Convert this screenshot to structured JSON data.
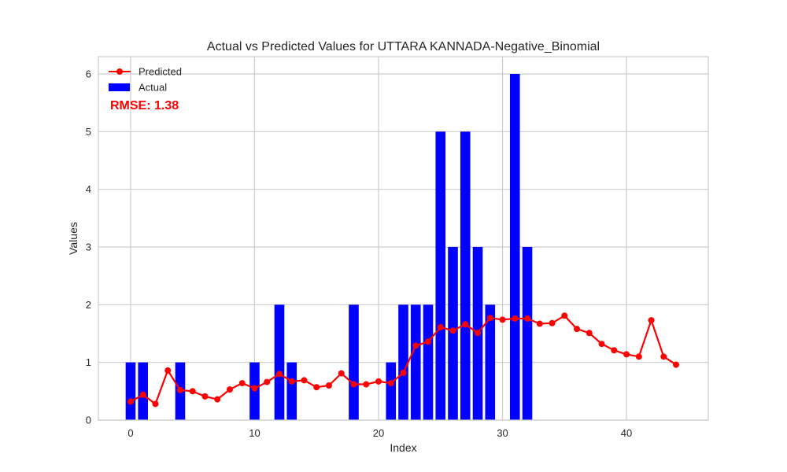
{
  "chart_data": {
    "type": "bar",
    "title": "Actual vs Predicted Values for UTTARA KANNADA-Negative_Binomial",
    "xlabel": "Index",
    "ylabel": "Values",
    "xlim": [
      -2.6,
      46.6
    ],
    "ylim": [
      0,
      6.3
    ],
    "xticks": [
      0,
      10,
      20,
      30,
      40
    ],
    "yticks": [
      0,
      1,
      2,
      3,
      4,
      5,
      6
    ],
    "grid": true,
    "legend_position": "top-left",
    "annotation": "RMSE: 1.38",
    "series": [
      {
        "name": "Actual",
        "type": "bar",
        "color": "#0000ff",
        "x": [
          0,
          1,
          2,
          3,
          4,
          5,
          6,
          7,
          8,
          9,
          10,
          11,
          12,
          13,
          14,
          15,
          16,
          17,
          18,
          19,
          20,
          21,
          22,
          23,
          24,
          25,
          26,
          27,
          28,
          29,
          30,
          31,
          32
        ],
        "values": [
          1,
          1,
          0,
          0,
          1,
          0,
          0,
          0,
          0,
          0,
          1,
          0,
          2,
          1,
          0,
          0,
          0,
          0,
          2,
          0,
          0,
          1,
          2,
          2,
          2,
          5,
          3,
          5,
          3,
          2,
          0,
          6,
          3
        ]
      },
      {
        "name": "Predicted",
        "type": "line",
        "color": "#ff0000",
        "x": [
          0,
          1,
          2,
          3,
          4,
          5,
          6,
          7,
          8,
          9,
          10,
          11,
          12,
          13,
          14,
          15,
          16,
          17,
          18,
          19,
          20,
          21,
          22,
          23,
          24,
          25,
          26,
          27,
          28,
          29,
          30,
          31,
          32,
          33,
          34,
          35,
          36,
          37,
          38,
          39,
          40,
          41,
          42,
          43,
          44
        ],
        "values": [
          0.32,
          0.44,
          0.28,
          0.86,
          0.52,
          0.5,
          0.41,
          0.36,
          0.53,
          0.64,
          0.55,
          0.66,
          0.8,
          0.67,
          0.69,
          0.57,
          0.6,
          0.81,
          0.62,
          0.62,
          0.67,
          0.64,
          0.82,
          1.29,
          1.36,
          1.61,
          1.55,
          1.66,
          1.51,
          1.77,
          1.74,
          1.76,
          1.76,
          1.67,
          1.68,
          1.81,
          1.58,
          1.51,
          1.32,
          1.21,
          1.14,
          1.1,
          1.73,
          1.1,
          0.96
        ]
      }
    ]
  }
}
